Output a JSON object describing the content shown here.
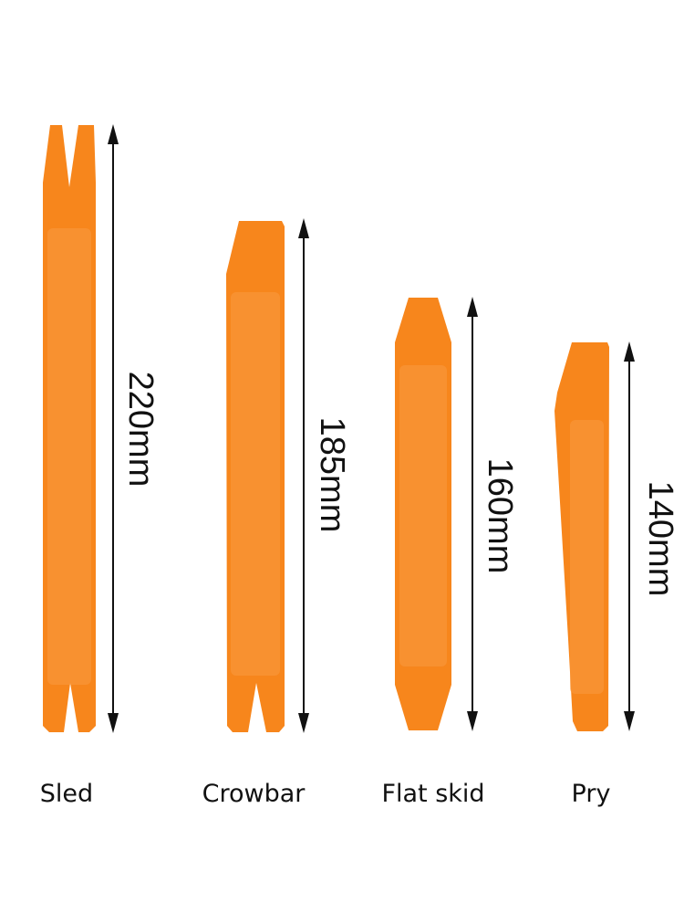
{
  "tools": [
    {
      "name": "Sled",
      "length": "220mm"
    },
    {
      "name": "Crowbar",
      "length": "185mm"
    },
    {
      "name": "Flat skid",
      "length": "160mm"
    },
    {
      "name": "Pry",
      "length": "140mm"
    }
  ]
}
